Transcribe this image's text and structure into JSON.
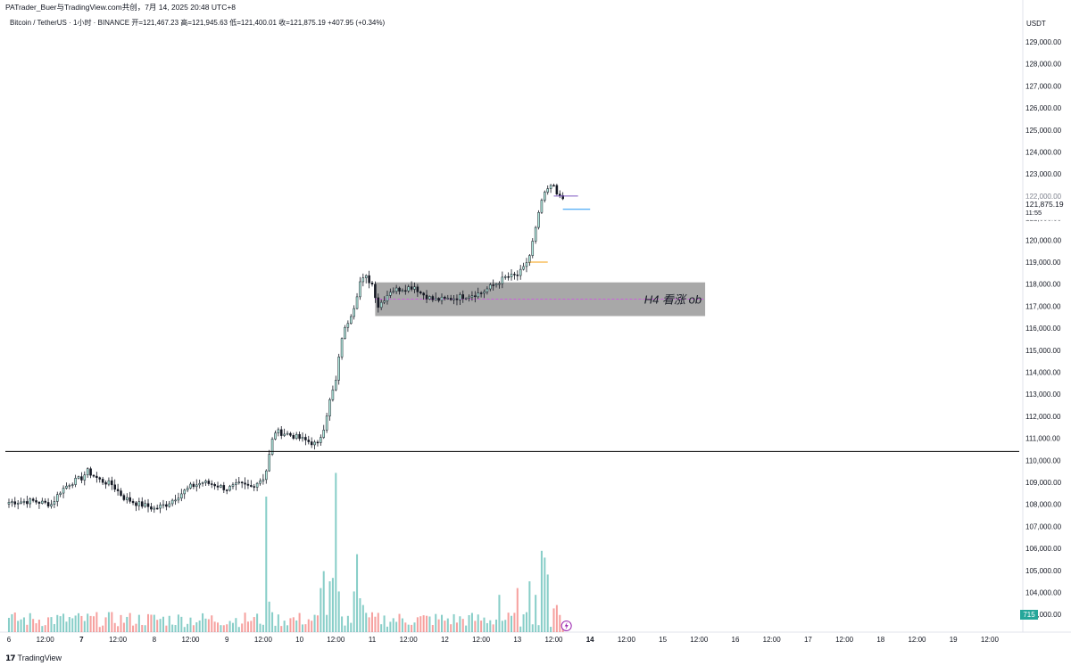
{
  "header": {
    "attribution": "PATrader_Buer与TradingView.com共创，7月 14, 2025 20:48 UTC+8"
  },
  "legend": {
    "text": "Bitcoin / TetherUS · 1小时 · BINANCE  开=121,467.23  高=121,945.63  低=121,400.01  收=121,875.19  +407.95 (+0.34%)"
  },
  "footer": {
    "brand": "TradingView"
  },
  "colors": {
    "up": "#26a69a",
    "down": "#ef5350",
    "body_up": "#b2ebdf",
    "volume_up": "#26a69a",
    "volume_down": "#ef5350",
    "zone": "#999999",
    "support_line": "#000000",
    "dashed": "#d946ef"
  },
  "chart_data": {
    "type": "candlestick",
    "currency": "USDT",
    "ylim": [
      102500,
      129800
    ],
    "y_ticks": [
      "129,000.00",
      "128,000.00",
      "127,000.00",
      "126,000.00",
      "125,000.00",
      "124,000.00",
      "123,000.00",
      "122,000.00",
      "121,000.00",
      "120,000.00",
      "119,000.00",
      "118,000.00",
      "117,000.00",
      "116,000.00",
      "115,000.00",
      "114,000.00",
      "113,000.00",
      "112,000.00",
      "111,000.00",
      "110,000.00",
      "109,000.00",
      "108,000.00",
      "107,000.00",
      "106,000.00",
      "105,000.00",
      "104,000.00",
      "103,000.00"
    ],
    "x_ticks": [
      {
        "label": "6",
        "day": 6,
        "hour": 0,
        "bold": false
      },
      {
        "label": "12:00",
        "day": 6,
        "hour": 12,
        "bold": false
      },
      {
        "label": "7",
        "day": 7,
        "hour": 0,
        "bold": true
      },
      {
        "label": "12:00",
        "day": 7,
        "hour": 12,
        "bold": false
      },
      {
        "label": "8",
        "day": 8,
        "hour": 0,
        "bold": false
      },
      {
        "label": "12:00",
        "day": 8,
        "hour": 12,
        "bold": false
      },
      {
        "label": "9",
        "day": 9,
        "hour": 0,
        "bold": false
      },
      {
        "label": "12:00",
        "day": 9,
        "hour": 12,
        "bold": false
      },
      {
        "label": "10",
        "day": 10,
        "hour": 0,
        "bold": false
      },
      {
        "label": "12:00",
        "day": 10,
        "hour": 12,
        "bold": false
      },
      {
        "label": "11",
        "day": 11,
        "hour": 0,
        "bold": false
      },
      {
        "label": "12:00",
        "day": 11,
        "hour": 12,
        "bold": false
      },
      {
        "label": "12",
        "day": 12,
        "hour": 0,
        "bold": false
      },
      {
        "label": "12:00",
        "day": 12,
        "hour": 12,
        "bold": false
      },
      {
        "label": "13",
        "day": 13,
        "hour": 0,
        "bold": false
      },
      {
        "label": "12:00",
        "day": 13,
        "hour": 12,
        "bold": false
      },
      {
        "label": "14",
        "day": 14,
        "hour": 0,
        "bold": true
      },
      {
        "label": "12:00",
        "day": 14,
        "hour": 12,
        "bold": false
      },
      {
        "label": "15",
        "day": 15,
        "hour": 0,
        "bold": false
      },
      {
        "label": "12:00",
        "day": 15,
        "hour": 12,
        "bold": false
      },
      {
        "label": "16",
        "day": 16,
        "hour": 0,
        "bold": false
      },
      {
        "label": "12:00",
        "day": 16,
        "hour": 12,
        "bold": false
      },
      {
        "label": "17",
        "day": 17,
        "hour": 0,
        "bold": false
      },
      {
        "label": "12:00",
        "day": 17,
        "hour": 12,
        "bold": false
      },
      {
        "label": "18",
        "day": 18,
        "hour": 0,
        "bold": false
      },
      {
        "label": "12:00",
        "day": 18,
        "hour": 12,
        "bold": false
      },
      {
        "label": "19",
        "day": 19,
        "hour": 0,
        "bold": false
      },
      {
        "label": "12:00",
        "day": 19,
        "hour": 12,
        "bold": false
      }
    ],
    "start_date": "2025-07-06",
    "price_path": [
      [
        0,
        108100
      ],
      [
        8,
        108150
      ],
      [
        14,
        108000
      ],
      [
        17,
        108600
      ],
      [
        20,
        108950
      ],
      [
        24,
        109200
      ],
      [
        26,
        109500
      ],
      [
        30,
        109100
      ],
      [
        34,
        108900
      ],
      [
        38,
        108300
      ],
      [
        42,
        108050
      ],
      [
        46,
        107900
      ],
      [
        48,
        107800
      ],
      [
        52,
        108000
      ],
      [
        56,
        108400
      ],
      [
        60,
        108800
      ],
      [
        64,
        109000
      ],
      [
        68,
        108900
      ],
      [
        72,
        108700
      ],
      [
        76,
        108900
      ],
      [
        80,
        108800
      ],
      [
        84,
        109200
      ],
      [
        85,
        109550
      ],
      [
        87,
        110900
      ],
      [
        88,
        111300
      ],
      [
        92,
        111200
      ],
      [
        96,
        111000
      ],
      [
        100,
        110800
      ],
      [
        102,
        110700
      ],
      [
        104,
        111500
      ],
      [
        106,
        112700
      ],
      [
        108,
        113600
      ],
      [
        110,
        115600
      ],
      [
        112,
        116300
      ],
      [
        114,
        117000
      ],
      [
        116,
        118100
      ],
      [
        118,
        118300
      ],
      [
        120,
        118000
      ],
      [
        122,
        117000
      ],
      [
        126,
        117700
      ],
      [
        130,
        117800
      ],
      [
        134,
        117900
      ],
      [
        136,
        117600
      ],
      [
        140,
        117300
      ],
      [
        144,
        117300
      ],
      [
        148,
        117400
      ],
      [
        152,
        117500
      ],
      [
        156,
        117600
      ],
      [
        160,
        117950
      ],
      [
        164,
        118300
      ],
      [
        168,
        118400
      ],
      [
        170,
        118700
      ],
      [
        172,
        119300
      ],
      [
        174,
        120500
      ],
      [
        176,
        121800
      ],
      [
        178,
        122300
      ],
      [
        180,
        122500
      ],
      [
        182,
        121900
      ],
      [
        183,
        121875.19
      ]
    ],
    "candles_total": 184,
    "volume_spikes": [
      [
        85,
        4.0
      ],
      [
        86,
        0.9
      ],
      [
        103,
        1.3
      ],
      [
        104,
        1.8
      ],
      [
        106,
        1.5
      ],
      [
        107,
        1.6
      ],
      [
        108,
        4.7
      ],
      [
        109,
        1.2
      ],
      [
        114,
        1.2
      ],
      [
        115,
        2.3
      ],
      [
        116,
        1.0
      ],
      [
        117,
        0.8
      ],
      [
        162,
        1.1
      ],
      [
        168,
        1.3
      ],
      [
        172,
        1.5
      ],
      [
        174,
        1.1
      ],
      [
        176,
        2.4
      ],
      [
        177,
        2.2
      ],
      [
        178,
        1.7
      ],
      [
        180,
        0.7
      ],
      [
        181,
        0.8
      ]
    ],
    "zone": {
      "label": "H4 看涨 ob",
      "top_price": 118080,
      "bottom_price": 116550,
      "mid_price": 117320,
      "start_index": 121,
      "end_index": 230
    },
    "support_price": 110400,
    "marker_lines": [
      {
        "price": 122000,
        "color": "#7e57c2",
        "start_index": 180,
        "end_index": 188
      },
      {
        "price": 121400,
        "color": "#2196f3",
        "start_index": 183,
        "end_index": 192
      },
      {
        "price": 119000,
        "color": "#f59e0b",
        "start_index": 172,
        "end_index": 178
      }
    ],
    "last_price_label": "121,875.19",
    "last_price_obscured": "122,000.00",
    "countdown": "11:55",
    "volume_badge": "715",
    "volume_badge_color": "#26a69a"
  }
}
